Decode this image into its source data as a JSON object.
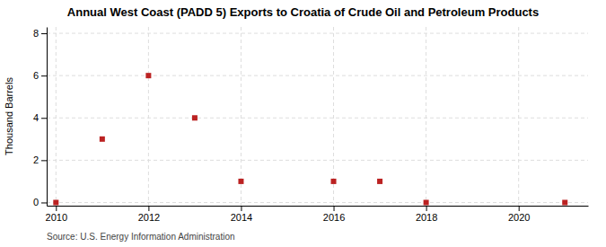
{
  "chart_data": {
    "type": "scatter",
    "title": "Annual West Coast (PADD 5) Exports to Croatia of Crude Oil and Petroleum Products",
    "ylabel": "Thousand Barrels",
    "source": "Source: U.S. Energy Information Administration",
    "x": [
      2010,
      2011,
      2012,
      2013,
      2014,
      2016,
      2017,
      2018,
      2021
    ],
    "values": [
      0,
      3,
      6,
      4,
      1,
      1,
      1,
      0,
      0
    ],
    "color": "#bb2222",
    "marker": "square",
    "xlim": [
      2009.8,
      2021.5
    ],
    "ylim": [
      -0.15,
      8.3
    ],
    "xticks": [
      2010,
      2012,
      2014,
      2016,
      2018,
      2020
    ],
    "yticks": [
      0,
      2,
      4,
      6,
      8
    ],
    "grid": true
  }
}
